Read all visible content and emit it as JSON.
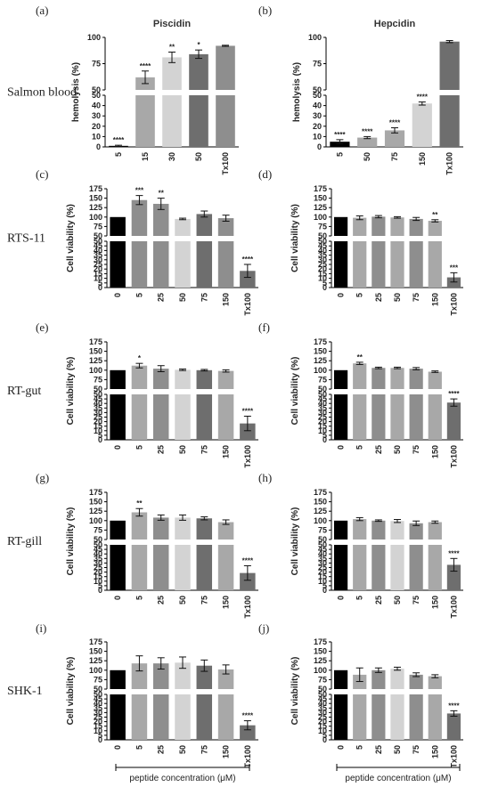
{
  "chart_data": [
    {
      "panel": "(a)",
      "row_label": "Salmon blood",
      "title": "Piscidin",
      "type": "bar",
      "ylabel": "hemolysis (%)",
      "categories": [
        "5",
        "15",
        "30",
        "50",
        "Tx100"
      ],
      "values": [
        1,
        62,
        81,
        84,
        92
      ],
      "errors": [
        0.6,
        6,
        5,
        4,
        0.5
      ],
      "significance": [
        "****",
        "****",
        "**",
        "*",
        ""
      ],
      "colors": [
        "#000000",
        "#a8a8a8",
        "#d3d3d3",
        "#6e6e6e",
        "#8e8e8e"
      ],
      "y_axis_break": {
        "lower": [
          0,
          50
        ],
        "upper": [
          50,
          100
        ]
      },
      "lower_ticks": [
        0,
        10,
        20,
        30,
        40,
        50
      ],
      "upper_ticks": [
        50,
        75,
        100
      ]
    },
    {
      "panel": "(b)",
      "title": "Hepcidin",
      "type": "bar",
      "ylabel": "hemolysis (%)",
      "categories": [
        "5",
        "50",
        "75",
        "150",
        "Tx100"
      ],
      "values": [
        5,
        9,
        16,
        42,
        96
      ],
      "errors": [
        2,
        1,
        2.5,
        1.5,
        1
      ],
      "significance": [
        "****",
        "****",
        "****",
        "****",
        ""
      ],
      "colors": [
        "#000000",
        "#a8a8a8",
        "#a8a8a8",
        "#d3d3d3",
        "#6e6e6e"
      ],
      "y_axis_break": {
        "lower": [
          0,
          50
        ],
        "upper": [
          50,
          100
        ]
      },
      "lower_ticks": [
        0,
        10,
        20,
        30,
        40,
        50
      ],
      "upper_ticks": [
        50,
        75,
        100
      ]
    },
    {
      "panel": "(c)",
      "row_label": "RTS-11",
      "type": "bar",
      "ylabel": "Cell viability (%)",
      "categories": [
        "0",
        "5",
        "25",
        "50",
        "75",
        "150",
        "Tx100"
      ],
      "values": [
        100,
        145,
        135,
        95,
        108,
        97,
        18
      ],
      "errors": [
        0,
        12,
        15,
        2,
        8,
        8,
        7
      ],
      "significance": [
        "",
        "***",
        "**",
        "",
        "",
        "",
        "****"
      ],
      "colors": [
        "#000000",
        "#8e8e8e",
        "#8e8e8e",
        "#d3d3d3",
        "#6e6e6e",
        "#8e8e8e",
        "#6e6e6e"
      ],
      "y_axis_break": {
        "lower": [
          0,
          50
        ],
        "upper": [
          50,
          175
        ]
      },
      "lower_ticks": [
        0,
        5,
        10,
        15,
        20,
        25,
        30,
        35,
        40,
        45,
        50
      ],
      "upper_ticks": [
        50,
        75,
        100,
        125,
        150,
        175
      ]
    },
    {
      "panel": "(d)",
      "type": "bar",
      "ylabel": "Cell viability (%)",
      "categories": [
        "0",
        "5",
        "25",
        "50",
        "75",
        "150",
        "Tx100"
      ],
      "values": [
        100,
        98,
        101,
        99,
        95,
        90,
        11
      ],
      "errors": [
        0,
        5,
        3,
        2,
        4,
        3,
        5
      ],
      "significance": [
        "",
        "",
        "",
        "",
        "",
        "**",
        "***"
      ],
      "colors": [
        "#000000",
        "#a8a8a8",
        "#8e8e8e",
        "#a8a8a8",
        "#8e8e8e",
        "#a8a8a8",
        "#6e6e6e"
      ],
      "y_axis_break": {
        "lower": [
          0,
          50
        ],
        "upper": [
          50,
          175
        ]
      },
      "lower_ticks": [
        0,
        5,
        10,
        15,
        20,
        25,
        30,
        35,
        40,
        45,
        50
      ],
      "upper_ticks": [
        50,
        75,
        100,
        125,
        150,
        175
      ]
    },
    {
      "panel": "(e)",
      "row_label": "RT-gut",
      "type": "bar",
      "ylabel": "Cell viability (%)",
      "categories": [
        "0",
        "5",
        "25",
        "50",
        "75",
        "150",
        "Tx100"
      ],
      "values": [
        100,
        112,
        104,
        101,
        100,
        98,
        18
      ],
      "errors": [
        0,
        6,
        8,
        2,
        2,
        3,
        8
      ],
      "significance": [
        "",
        "*",
        "",
        "",
        "",
        "",
        "****"
      ],
      "colors": [
        "#000000",
        "#a8a8a8",
        "#8e8e8e",
        "#d3d3d3",
        "#6e6e6e",
        "#a8a8a8",
        "#6e6e6e"
      ],
      "y_axis_break": {
        "lower": [
          0,
          50
        ],
        "upper": [
          50,
          175
        ]
      },
      "lower_ticks": [
        0,
        5,
        10,
        15,
        20,
        25,
        30,
        35,
        40,
        45,
        50
      ],
      "upper_ticks": [
        50,
        75,
        100,
        125,
        150,
        175
      ]
    },
    {
      "panel": "(f)",
      "type": "bar",
      "ylabel": "Cell viability (%)",
      "categories": [
        "0",
        "5",
        "25",
        "50",
        "75",
        "150",
        "Tx100"
      ],
      "values": [
        100,
        118,
        106,
        106,
        104,
        96,
        41
      ],
      "errors": [
        0,
        3,
        2,
        2,
        3,
        2,
        4
      ],
      "significance": [
        "",
        "**",
        "",
        "",
        "",
        "",
        "****"
      ],
      "colors": [
        "#000000",
        "#a8a8a8",
        "#8e8e8e",
        "#a8a8a8",
        "#8e8e8e",
        "#a8a8a8",
        "#6e6e6e"
      ],
      "y_axis_break": {
        "lower": [
          0,
          50
        ],
        "upper": [
          50,
          175
        ]
      },
      "lower_ticks": [
        0,
        5,
        10,
        15,
        20,
        25,
        30,
        35,
        40,
        45,
        50
      ],
      "upper_ticks": [
        50,
        75,
        100,
        125,
        150,
        175
      ]
    },
    {
      "panel": "(g)",
      "row_label": "RT-gill",
      "type": "bar",
      "ylabel": "Cell viability (%)",
      "categories": [
        "0",
        "5",
        "25",
        "50",
        "75",
        "150",
        "Tx100"
      ],
      "values": [
        100,
        122,
        108,
        108,
        106,
        96,
        19
      ],
      "errors": [
        0,
        10,
        7,
        7,
        4,
        6,
        8
      ],
      "significance": [
        "",
        "**",
        "",
        "",
        "",
        "",
        "****"
      ],
      "colors": [
        "#000000",
        "#a8a8a8",
        "#8e8e8e",
        "#d3d3d3",
        "#6e6e6e",
        "#a8a8a8",
        "#6e6e6e"
      ],
      "y_axis_break": {
        "lower": [
          0,
          50
        ],
        "upper": [
          50,
          175
        ]
      },
      "lower_ticks": [
        0,
        5,
        10,
        15,
        20,
        25,
        30,
        35,
        40,
        45,
        50
      ],
      "upper_ticks": [
        50,
        75,
        100,
        125,
        150,
        175
      ]
    },
    {
      "panel": "(h)",
      "type": "bar",
      "ylabel": "Cell viability (%)",
      "categories": [
        "0",
        "5",
        "25",
        "50",
        "75",
        "150",
        "Tx100"
      ],
      "values": [
        100,
        104,
        100,
        99,
        93,
        96,
        28
      ],
      "errors": [
        0,
        4,
        2,
        4,
        6,
        3,
        7
      ],
      "significance": [
        "",
        "",
        "",
        "",
        "",
        "",
        "****"
      ],
      "colors": [
        "#000000",
        "#a8a8a8",
        "#8e8e8e",
        "#d3d3d3",
        "#8e8e8e",
        "#a8a8a8",
        "#6e6e6e"
      ],
      "y_axis_break": {
        "lower": [
          0,
          50
        ],
        "upper": [
          50,
          175
        ]
      },
      "lower_ticks": [
        0,
        5,
        10,
        15,
        20,
        25,
        30,
        35,
        40,
        45,
        50
      ],
      "upper_ticks": [
        50,
        75,
        100,
        125,
        150,
        175
      ]
    },
    {
      "panel": "(i)",
      "row_label": "SHK-1",
      "type": "bar",
      "ylabel": "Cell viability (%)",
      "categories": [
        "0",
        "5",
        "25",
        "50",
        "75",
        "150",
        "Tx100"
      ],
      "values": [
        100,
        118,
        118,
        120,
        112,
        102,
        16
      ],
      "errors": [
        0,
        20,
        15,
        15,
        15,
        12,
        5
      ],
      "significance": [
        "",
        "",
        "",
        "",
        "",
        "",
        "****"
      ],
      "colors": [
        "#000000",
        "#a8a8a8",
        "#8e8e8e",
        "#d3d3d3",
        "#6e6e6e",
        "#a8a8a8",
        "#6e6e6e"
      ],
      "y_axis_break": {
        "lower": [
          0,
          50
        ],
        "upper": [
          50,
          175
        ]
      },
      "lower_ticks": [
        0,
        5,
        10,
        15,
        20,
        25,
        30,
        35,
        40,
        45,
        50
      ],
      "upper_ticks": [
        50,
        75,
        100,
        125,
        150,
        175
      ]
    },
    {
      "panel": "(j)",
      "type": "bar",
      "ylabel": "Cell viability (%)",
      "categories": [
        "0",
        "5",
        "25",
        "50",
        "75",
        "150",
        "Tx100"
      ],
      "values": [
        100,
        88,
        100,
        104,
        88,
        84,
        29
      ],
      "errors": [
        0,
        18,
        6,
        4,
        5,
        4,
        3
      ],
      "significance": [
        "",
        "",
        "",
        "",
        "",
        "",
        "****"
      ],
      "colors": [
        "#000000",
        "#a8a8a8",
        "#8e8e8e",
        "#d3d3d3",
        "#8e8e8e",
        "#a8a8a8",
        "#6e6e6e"
      ],
      "y_axis_break": {
        "lower": [
          0,
          50
        ],
        "upper": [
          50,
          175
        ]
      },
      "lower_ticks": [
        0,
        5,
        10,
        15,
        20,
        25,
        30,
        35,
        40,
        45,
        50
      ],
      "upper_ticks": [
        50,
        75,
        100,
        125,
        150,
        175
      ]
    }
  ],
  "xlabel": "peptide concentration (μM)"
}
